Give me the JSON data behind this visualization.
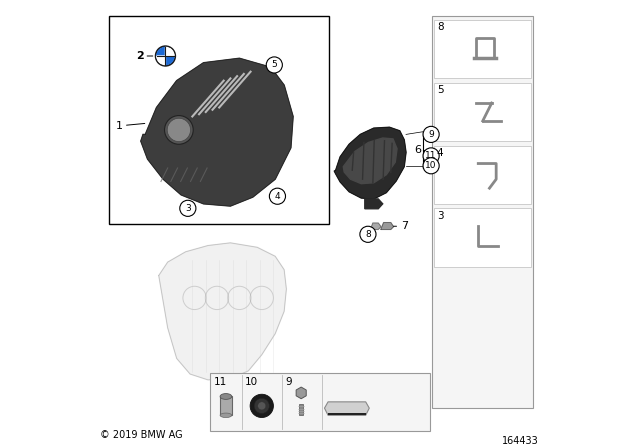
{
  "background_color": "#ffffff",
  "copyright_text": "© 2019 BMW AG",
  "diagram_number": "164433",
  "gray_dark": "#3d3d3d",
  "gray_mid": "#808080",
  "gray_light": "#b0b0b0",
  "bmw_blue": "#1c69d4",
  "bmw_black": "#1a1a1a",
  "label_fontsize": 7.5,
  "callout_fontsize": 7
}
